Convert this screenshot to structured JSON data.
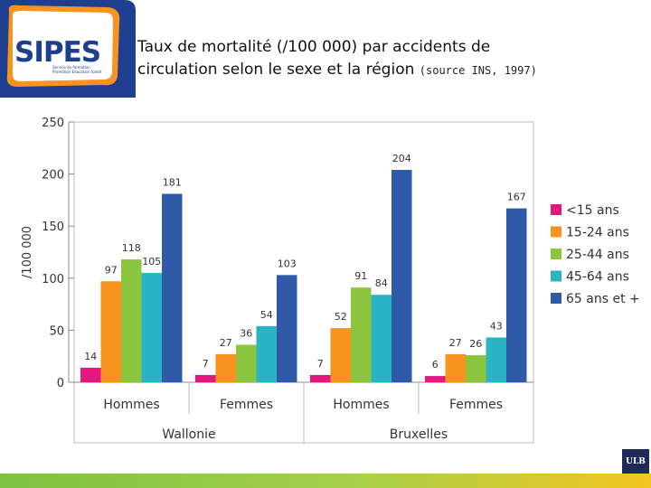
{
  "logo": {
    "text": "SIPES",
    "subtitle_line1": "Service de formation",
    "subtitle_line2": "Promotion Education Santé"
  },
  "title": {
    "main_line1": "Taux de mortalité (/100 000) par accidents de",
    "main_line2": "circulation selon le sexe et la région",
    "source": "(source INS, 1997)"
  },
  "footer": {
    "badge": "ULB"
  },
  "colors": {
    "lt15": "#e8177f",
    "a15_24": "#f7931e",
    "a25_44": "#8cc63f",
    "a45_64": "#2ab5c5",
    "a65p": "#2e5aa8",
    "brand_green": "#7dc242",
    "brand_orange": "#f7931e"
  },
  "chart_data": {
    "type": "bar",
    "ylabel": "/100 000",
    "ylim": [
      0,
      250
    ],
    "yticks": [
      0,
      50,
      100,
      150,
      200,
      250
    ],
    "categories": [
      "Hommes",
      "Femmes",
      "Hommes",
      "Femmes"
    ],
    "groups": [
      {
        "label": "Wallonie",
        "span": [
          0,
          1
        ]
      },
      {
        "label": "Bruxelles",
        "span": [
          2,
          3
        ]
      }
    ],
    "legend_position": "right",
    "grid": false,
    "series": [
      {
        "name": "<15 ans",
        "values": [
          14,
          7,
          7,
          6
        ],
        "color": "#e8177f"
      },
      {
        "name": "15-24 ans",
        "values": [
          97,
          27,
          52,
          27
        ],
        "color": "#f7931e"
      },
      {
        "name": "25-44 ans",
        "values": [
          118,
          36,
          91,
          26
        ],
        "color": "#8cc63f"
      },
      {
        "name": "45-64 ans",
        "values": [
          105,
          54,
          84,
          43
        ],
        "color": "#2ab5c5"
      },
      {
        "name": "65 ans et +",
        "values": [
          181,
          103,
          204,
          167
        ],
        "color": "#2e5aa8"
      }
    ]
  }
}
